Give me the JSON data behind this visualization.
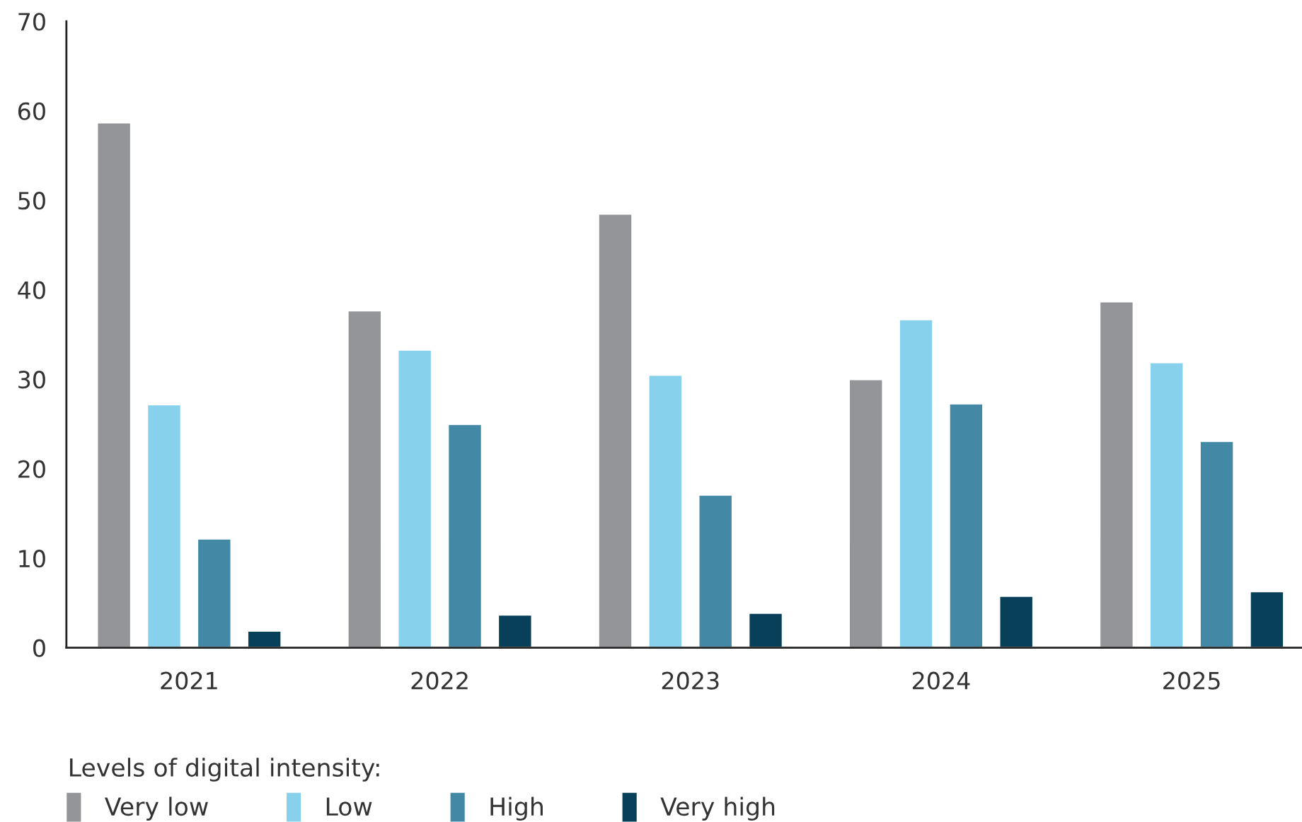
{
  "chart_data": {
    "type": "bar",
    "categories": [
      "2021",
      "2022",
      "2023",
      "2024",
      "2025"
    ],
    "series": [
      {
        "name": "Very low",
        "color": "#939598",
        "values": [
          58.7,
          37.7,
          48.5,
          30.0,
          38.7
        ]
      },
      {
        "name": "Low",
        "color": "#87d1ed",
        "values": [
          27.2,
          33.3,
          30.5,
          36.7,
          31.9
        ]
      },
      {
        "name": "High",
        "color": "#4389a6",
        "values": [
          12.2,
          25.0,
          17.1,
          27.3,
          23.1
        ]
      },
      {
        "name": "Very high",
        "color": "#08405a",
        "values": [
          1.9,
          3.7,
          3.9,
          5.8,
          6.3
        ]
      }
    ],
    "legend_title": "Levels of digital intensity:",
    "legend": "bottom left",
    "ylim": [
      0,
      70
    ],
    "yticks": [
      0,
      10,
      20,
      30,
      40,
      50,
      60,
      70
    ],
    "grid": false
  }
}
